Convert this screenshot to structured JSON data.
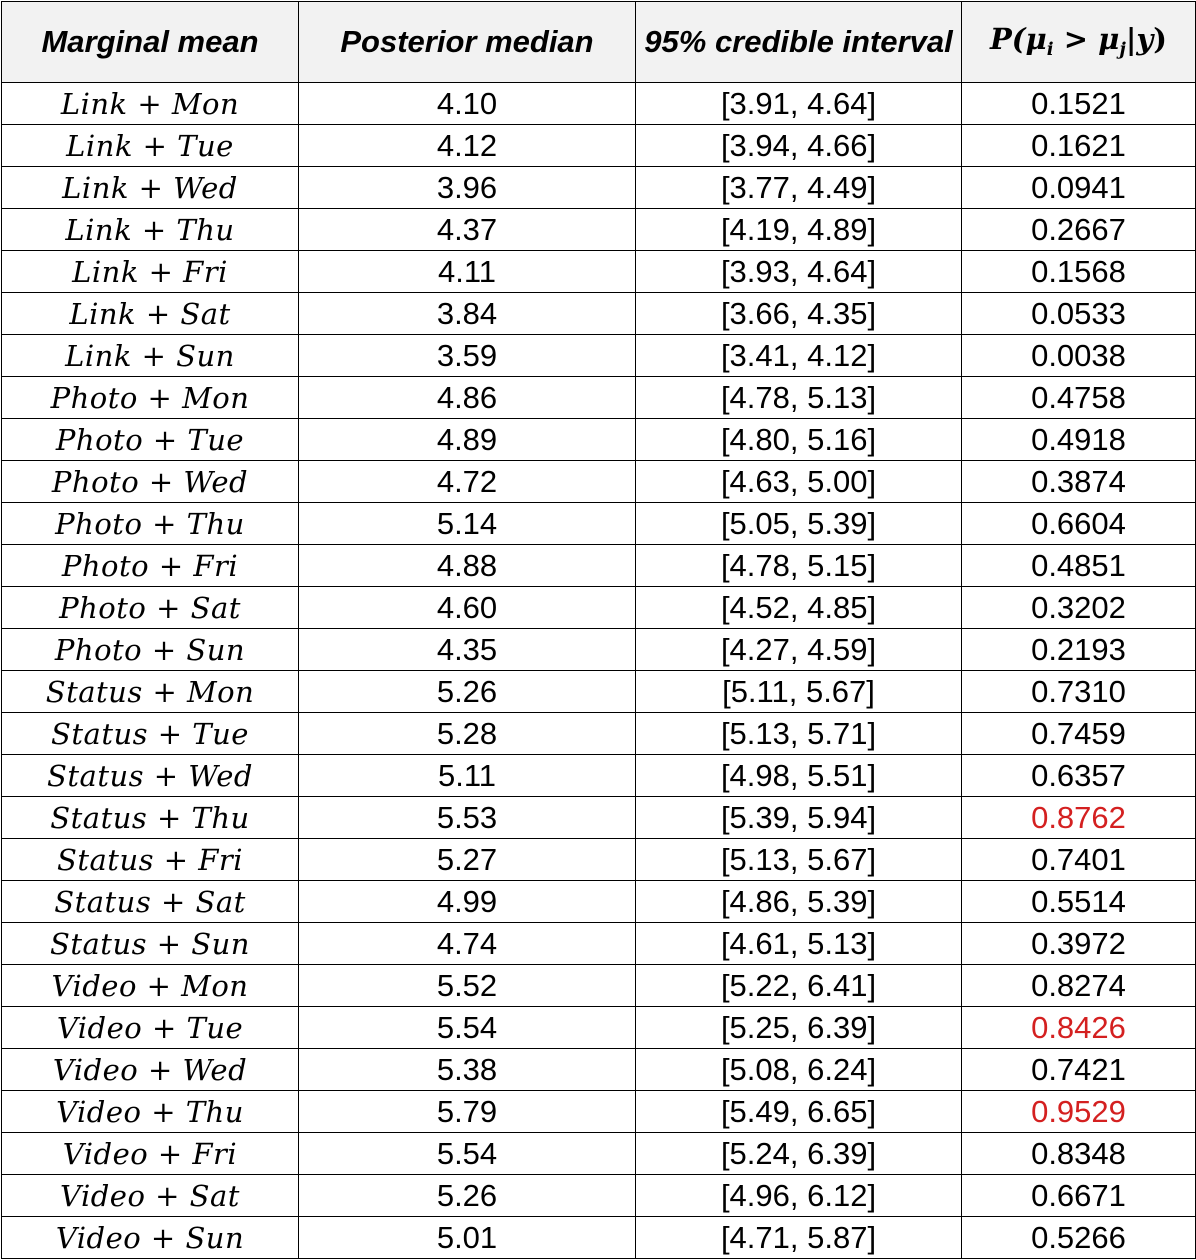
{
  "headers": {
    "marginal_mean": "Marginal mean",
    "posterior_median": "Posterior median",
    "credible_interval": "95% credible interval",
    "probability": {
      "prefix": "P(",
      "mu_i": "μ",
      "sub_i": "i",
      "gt": " > ",
      "mu_j": "μ",
      "sub_j": "j",
      "cond": "|",
      "y": "y",
      "suffix": ")"
    }
  },
  "highlight_color": "#d42020",
  "rows": [
    {
      "term": "Link + Mon",
      "median": "4.10",
      "interval": "[3.91, 4.64]",
      "prob": "0.1521",
      "highlight": false
    },
    {
      "term": "Link + Tue",
      "median": "4.12",
      "interval": "[3.94, 4.66]",
      "prob": "0.1621",
      "highlight": false
    },
    {
      "term": "Link + Wed",
      "median": "3.96",
      "interval": "[3.77, 4.49]",
      "prob": "0.0941",
      "highlight": false
    },
    {
      "term": "Link + Thu",
      "median": "4.37",
      "interval": "[4.19, 4.89]",
      "prob": "0.2667",
      "highlight": false
    },
    {
      "term": "Link + Fri",
      "median": "4.11",
      "interval": "[3.93, 4.64]",
      "prob": "0.1568",
      "highlight": false
    },
    {
      "term": "Link + Sat",
      "median": "3.84",
      "interval": "[3.66, 4.35]",
      "prob": "0.0533",
      "highlight": false
    },
    {
      "term": "Link + Sun",
      "median": "3.59",
      "interval": "[3.41, 4.12]",
      "prob": "0.0038",
      "highlight": false
    },
    {
      "term": "Photo + Mon",
      "median": "4.86",
      "interval": "[4.78, 5.13]",
      "prob": "0.4758",
      "highlight": false
    },
    {
      "term": "Photo + Tue",
      "median": "4.89",
      "interval": "[4.80, 5.16]",
      "prob": "0.4918",
      "highlight": false
    },
    {
      "term": "Photo + Wed",
      "median": "4.72",
      "interval": "[4.63, 5.00]",
      "prob": "0.3874",
      "highlight": false
    },
    {
      "term": "Photo + Thu",
      "median": "5.14",
      "interval": "[5.05, 5.39]",
      "prob": "0.6604",
      "highlight": false
    },
    {
      "term": "Photo + Fri",
      "median": "4.88",
      "interval": "[4.78, 5.15]",
      "prob": "0.4851",
      "highlight": false
    },
    {
      "term": "Photo + Sat",
      "median": "4.60",
      "interval": "[4.52, 4.85]",
      "prob": "0.3202",
      "highlight": false
    },
    {
      "term": "Photo + Sun",
      "median": "4.35",
      "interval": "[4.27, 4.59]",
      "prob": "0.2193",
      "highlight": false
    },
    {
      "term": "Status + Mon",
      "median": "5.26",
      "interval": "[5.11, 5.67]",
      "prob": "0.7310",
      "highlight": false
    },
    {
      "term": "Status + Tue",
      "median": "5.28",
      "interval": "[5.13, 5.71]",
      "prob": "0.7459",
      "highlight": false
    },
    {
      "term": "Status + Wed",
      "median": "5.11",
      "interval": "[4.98, 5.51]",
      "prob": "0.6357",
      "highlight": false
    },
    {
      "term": "Status + Thu",
      "median": "5.53",
      "interval": "[5.39, 5.94]",
      "prob": "0.8762",
      "highlight": true
    },
    {
      "term": "Status + Fri",
      "median": "5.27",
      "interval": "[5.13, 5.67]",
      "prob": "0.7401",
      "highlight": false
    },
    {
      "term": "Status + Sat",
      "median": "4.99",
      "interval": "[4.86, 5.39]",
      "prob": "0.5514",
      "highlight": false
    },
    {
      "term": "Status + Sun",
      "median": "4.74",
      "interval": "[4.61, 5.13]",
      "prob": "0.3972",
      "highlight": false
    },
    {
      "term": "Video + Mon",
      "median": "5.52",
      "interval": "[5.22, 6.41]",
      "prob": "0.8274",
      "highlight": false
    },
    {
      "term": "Video + Tue",
      "median": "5.54",
      "interval": "[5.25, 6.39]",
      "prob": "0.8426",
      "highlight": true
    },
    {
      "term": "Video + Wed",
      "median": "5.38",
      "interval": "[5.08, 6.24]",
      "prob": "0.7421",
      "highlight": false
    },
    {
      "term": "Video + Thu",
      "median": "5.79",
      "interval": "[5.49, 6.65]",
      "prob": "0.9529",
      "highlight": true
    },
    {
      "term": "Video + Fri",
      "median": "5.54",
      "interval": "[5.24, 6.39]",
      "prob": "0.8348",
      "highlight": false
    },
    {
      "term": "Video + Sat",
      "median": "5.26",
      "interval": "[4.96, 6.12]",
      "prob": "0.6671",
      "highlight": false
    },
    {
      "term": "Video + Sun",
      "median": "5.01",
      "interval": "[4.71, 5.87]",
      "prob": "0.5266",
      "highlight": false
    }
  ]
}
